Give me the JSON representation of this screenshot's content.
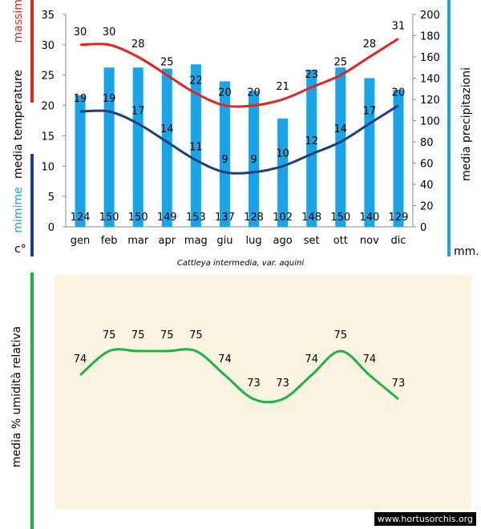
{
  "caption": "Cattleya intermedia, var. aquini",
  "watermark": "www.hortusorchis.org",
  "colors": {
    "max": "#e8221b",
    "min": "#1f3f7a",
    "bars": "#1aa3e6",
    "humidity": "#1db34a",
    "panel_bg": "#faf3df"
  },
  "left_axis": {
    "label_max": "massime",
    "label_media": "media temperature",
    "label_min": "mimime",
    "unit": "c°"
  },
  "right_axis": {
    "label": "media precipitazioni",
    "unit": "mm."
  },
  "humidity_axis": {
    "label": "media % umidità relativa"
  },
  "chart_data": [
    {
      "type": "bar",
      "categories": [
        "gen",
        "feb",
        "mar",
        "apr",
        "mag",
        "giu",
        "lug",
        "ago",
        "set",
        "ott",
        "nov",
        "dic"
      ],
      "series": [
        {
          "name": "massime",
          "type": "line",
          "axis": "left",
          "values": [
            30,
            30,
            28,
            25,
            22,
            20,
            20,
            21,
            23,
            25,
            28,
            31
          ]
        },
        {
          "name": "mimime",
          "type": "line",
          "axis": "left",
          "values": [
            19,
            19,
            17,
            14,
            11,
            9,
            9,
            10,
            12,
            14,
            17,
            20
          ]
        },
        {
          "name": "media precipitazioni",
          "type": "bar",
          "axis": "right",
          "values": [
            124,
            150,
            150,
            149,
            153,
            137,
            128,
            102,
            148,
            150,
            140,
            129
          ]
        }
      ],
      "y_left": {
        "min": 0,
        "max": 35,
        "ticks": [
          0,
          5,
          10,
          15,
          20,
          25,
          30,
          35
        ]
      },
      "y_right": {
        "min": 0,
        "max": 200,
        "ticks": [
          0,
          20,
          40,
          60,
          80,
          100,
          120,
          140,
          160,
          180,
          200
        ]
      }
    },
    {
      "type": "line",
      "categories": [
        "gen",
        "feb",
        "mar",
        "apr",
        "mag",
        "giu",
        "lug",
        "ago",
        "set",
        "ott",
        "nov",
        "dic"
      ],
      "series": [
        {
          "name": "media % umidità relativa",
          "values": [
            74,
            75,
            75,
            75,
            75,
            74,
            73,
            73,
            74,
            75,
            74,
            73
          ]
        }
      ]
    }
  ]
}
